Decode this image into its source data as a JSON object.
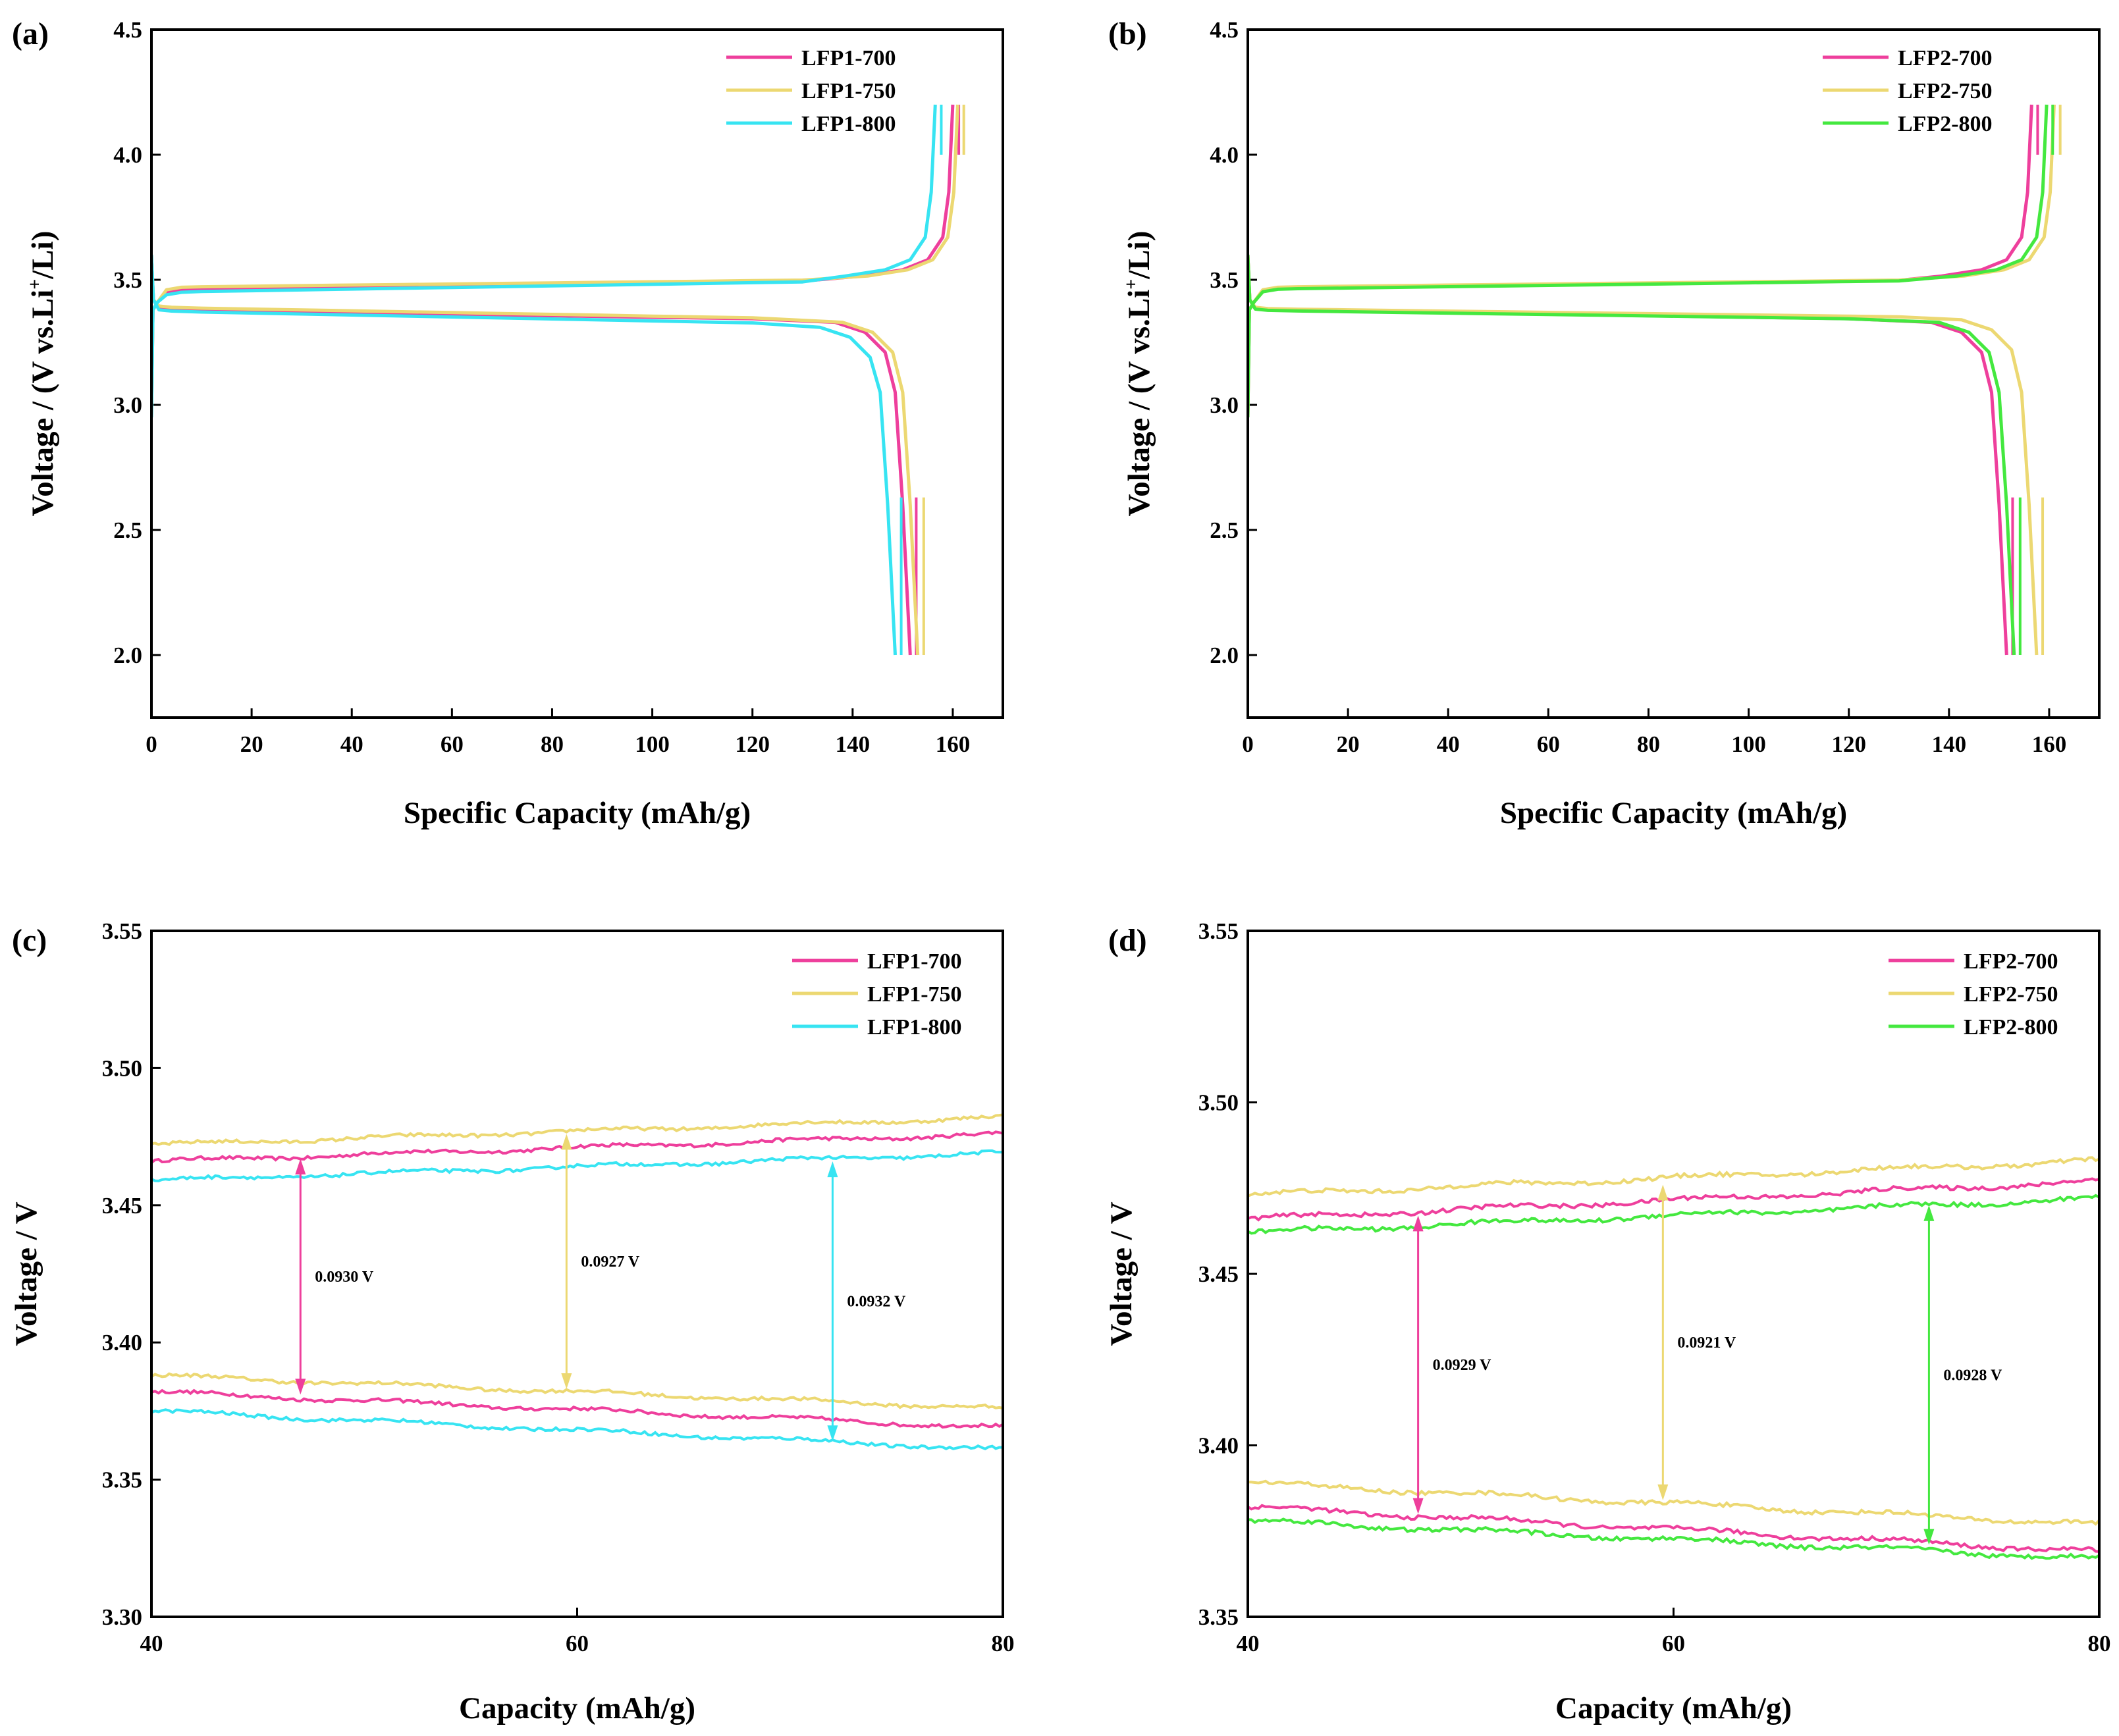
{
  "colors": {
    "magenta": "#ee3f9c",
    "yellow": "#ecd872",
    "cyan": "#37e4f2",
    "green": "#44e83f"
  },
  "chart_data": [
    {
      "panel": "(a)",
      "type": "line",
      "xlabel": "Specific Capacity (mAh/g)",
      "ylabel_parts": [
        "Voltage / (V vs.Li",
        "+",
        "/Li)"
      ],
      "xlim": [
        0,
        170
      ],
      "ylim": [
        1.75,
        4.5
      ],
      "xticks": [
        0,
        20,
        40,
        60,
        80,
        100,
        120,
        140,
        160
      ],
      "xtick_labels": [
        "0",
        "20",
        "40",
        "60",
        "80",
        "100",
        "120",
        "140",
        "160"
      ],
      "yticks": [
        2.0,
        2.5,
        3.0,
        3.5,
        4.0,
        4.5
      ],
      "ytick_labels": [
        "2.0",
        "2.5",
        "3.0",
        "3.5",
        "4.0",
        "4.5"
      ],
      "legend_position": "top-right",
      "series": [
        {
          "name": "LFP1-700",
          "color": "#ee3f9c",
          "charge_capacity": 160,
          "discharge_capacity": 151.5,
          "charge_plateau": [
            3.46,
            3.52
          ],
          "discharge_plateau": [
            3.38,
            3.33
          ]
        },
        {
          "name": "LFP1-750",
          "color": "#ecd872",
          "charge_capacity": 161,
          "discharge_capacity": 153,
          "charge_plateau": [
            3.47,
            3.52
          ],
          "discharge_plateau": [
            3.39,
            3.33
          ]
        },
        {
          "name": "LFP1-800",
          "color": "#37e4f2",
          "charge_capacity": 156.5,
          "discharge_capacity": 148.5,
          "charge_plateau": [
            3.45,
            3.52
          ],
          "discharge_plateau": [
            3.375,
            3.31
          ]
        }
      ]
    },
    {
      "panel": "(b)",
      "type": "line",
      "xlabel": "Specific Capacity (mAh/g)",
      "ylabel_parts": [
        "Voltage / (V vs.Li",
        "+",
        "/Li)"
      ],
      "xlim": [
        0,
        170
      ],
      "ylim": [
        1.75,
        4.5
      ],
      "xticks": [
        0,
        20,
        40,
        60,
        80,
        100,
        120,
        140,
        160
      ],
      "xtick_labels": [
        "0",
        "20",
        "40",
        "60",
        "80",
        "100",
        "120",
        "140",
        "160"
      ],
      "yticks": [
        2.0,
        2.5,
        3.0,
        3.5,
        4.0,
        4.5
      ],
      "ytick_labels": [
        "2.0",
        "2.5",
        "3.0",
        "3.5",
        "4.0",
        "4.5"
      ],
      "legend_position": "top-right",
      "series": [
        {
          "name": "LFP2-700",
          "color": "#ee3f9c",
          "charge_capacity": 156.5,
          "discharge_capacity": 151.5,
          "charge_plateau": [
            3.465,
            3.52
          ],
          "discharge_plateau": [
            3.38,
            3.33
          ]
        },
        {
          "name": "LFP2-750",
          "color": "#ecd872",
          "charge_capacity": 161,
          "discharge_capacity": 157.5,
          "charge_plateau": [
            3.47,
            3.52
          ],
          "discharge_plateau": [
            3.385,
            3.34
          ]
        },
        {
          "name": "LFP2-800",
          "color": "#44e83f",
          "charge_capacity": 159.5,
          "discharge_capacity": 153,
          "charge_plateau": [
            3.462,
            3.52
          ],
          "discharge_plateau": [
            3.378,
            3.33
          ]
        }
      ]
    },
    {
      "panel": "(c)",
      "type": "line",
      "xlabel": "Capacity (mAh/g)",
      "ylabel": "Voltage / V",
      "xlim": [
        40,
        80
      ],
      "ylim": [
        3.3,
        3.55
      ],
      "xticks": [
        40,
        60,
        80
      ],
      "xtick_labels": [
        "40",
        "60",
        "80"
      ],
      "yticks": [
        3.3,
        3.35,
        3.4,
        3.45,
        3.5,
        3.55
      ],
      "ytick_labels": [
        "3.30",
        "3.35",
        "3.40",
        "3.45",
        "3.50",
        "3.55"
      ],
      "legend_position": "top-right",
      "series": [
        {
          "name": "LFP1-700",
          "color": "#ee3f9c",
          "charge": [
            [
              40,
              3.466
            ],
            [
              80,
              3.476
            ]
          ],
          "discharge": [
            [
              40,
              3.382
            ],
            [
              80,
              3.369
            ]
          ]
        },
        {
          "name": "LFP1-750",
          "color": "#ecd872",
          "charge": [
            [
              40,
              3.472
            ],
            [
              80,
              3.482
            ]
          ],
          "discharge": [
            [
              40,
              3.388
            ],
            [
              80,
              3.376
            ]
          ]
        },
        {
          "name": "LFP1-800",
          "color": "#37e4f2",
          "charge": [
            [
              40,
              3.459
            ],
            [
              80,
              3.469
            ]
          ],
          "discharge": [
            [
              40,
              3.375
            ],
            [
              80,
              3.361
            ]
          ]
        }
      ],
      "annotations": [
        {
          "text": "0.0930 V",
          "x": 47,
          "y_top": 3.467,
          "y_bottom": 3.381,
          "color": "#ee3f9c"
        },
        {
          "text": "0.0927 V",
          "x": 59.5,
          "y_top": 3.476,
          "y_bottom": 3.383,
          "color": "#ecd872"
        },
        {
          "text": "0.0932 V",
          "x": 72,
          "y_top": 3.466,
          "y_bottom": 3.364,
          "color": "#37e4f2"
        }
      ]
    },
    {
      "panel": "(d)",
      "type": "line",
      "xlabel": "Capacity (mAh/g)",
      "ylabel": "Voltage / V",
      "xlim": [
        40,
        80
      ],
      "ylim": [
        3.35,
        3.55
      ],
      "xticks": [
        40,
        60,
        80
      ],
      "xtick_labels": [
        "40",
        "60",
        "80"
      ],
      "yticks": [
        3.35,
        3.4,
        3.45,
        3.5,
        3.55
      ],
      "ytick_labels": [
        "3.35",
        "3.40",
        "3.45",
        "3.50",
        "3.55"
      ],
      "legend_position": "top-right",
      "series": [
        {
          "name": "LFP2-700",
          "color": "#ee3f9c",
          "charge": [
            [
              40,
              3.466
            ],
            [
              80,
              3.477
            ]
          ],
          "discharge": [
            [
              40,
              3.382
            ],
            [
              80,
              3.369
            ]
          ]
        },
        {
          "name": "LFP2-750",
          "color": "#ecd872",
          "charge": [
            [
              40,
              3.473
            ],
            [
              80,
              3.483
            ]
          ],
          "discharge": [
            [
              40,
              3.389
            ],
            [
              80,
              3.377
            ]
          ]
        },
        {
          "name": "LFP2-800",
          "color": "#44e83f",
          "charge": [
            [
              40,
              3.462
            ],
            [
              80,
              3.472
            ]
          ],
          "discharge": [
            [
              40,
              3.378
            ],
            [
              80,
              3.367
            ]
          ]
        }
      ],
      "annotations": [
        {
          "text": "0.0929 V",
          "x": 48,
          "y_top": 3.467,
          "y_bottom": 3.38,
          "color": "#ee3f9c"
        },
        {
          "text": "0.0921 V",
          "x": 59.5,
          "y_top": 3.476,
          "y_bottom": 3.384,
          "color": "#ecd872"
        },
        {
          "text": "0.0928 V",
          "x": 72,
          "y_top": 3.47,
          "y_bottom": 3.371,
          "color": "#44e83f"
        }
      ]
    }
  ]
}
